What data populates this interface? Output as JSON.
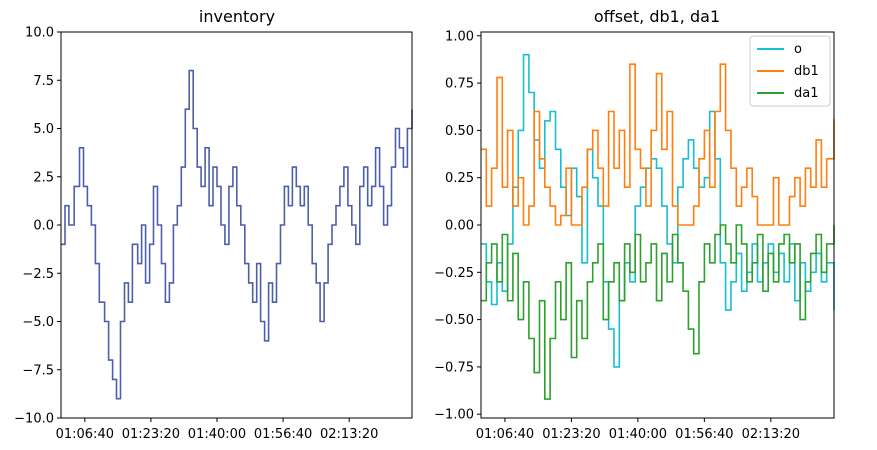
{
  "chart_data": [
    {
      "type": "line",
      "title": "inventory",
      "xlabel": "",
      "ylabel": "",
      "x_tick_labels": [
        "01:06:40",
        "01:23:20",
        "01:40:00",
        "01:56:40",
        "02:13:20"
      ],
      "x_tick_seconds": [
        4000,
        5000,
        6000,
        7000,
        8000
      ],
      "xlim_seconds": [
        3640,
        8950
      ],
      "ylim": [
        -10,
        10
      ],
      "y_ticks": [
        "−10.0",
        "−7.5",
        "−5.0",
        "−2.5",
        "0.0",
        "2.5",
        "5.0",
        "7.5",
        "10.0"
      ],
      "y_tick_values": [
        -10,
        -7.5,
        -5,
        -2.5,
        0,
        2.5,
        5,
        7.5,
        10
      ],
      "grid": false,
      "series": [
        {
          "color": "#4c5fac",
          "x_seconds": [
            3640,
            3700,
            3760,
            3840,
            3920,
            3980,
            4040,
            4100,
            4160,
            4220,
            4300,
            4360,
            4420,
            4480,
            4540,
            4600,
            4660,
            4720,
            4800,
            4860,
            4920,
            4980,
            5040,
            5100,
            5160,
            5220,
            5280,
            5340,
            5400,
            5460,
            5520,
            5580,
            5640,
            5700,
            5760,
            5820,
            5880,
            5940,
            6000,
            6060,
            6120,
            6180,
            6240,
            6300,
            6360,
            6420,
            6480,
            6540,
            6600,
            6660,
            6720,
            6780,
            6840,
            6900,
            6960,
            7020,
            7080,
            7140,
            7200,
            7260,
            7320,
            7380,
            7440,
            7500,
            7560,
            7620,
            7680,
            7740,
            7800,
            7860,
            7920,
            7980,
            8040,
            8100,
            8160,
            8220,
            8280,
            8340,
            8400,
            8460,
            8520,
            8580,
            8640,
            8700,
            8760,
            8820,
            8880,
            8950
          ],
          "values": [
            -1,
            1,
            0,
            2,
            4,
            2,
            1,
            0,
            -2,
            -4,
            -5,
            -7,
            -8,
            -9,
            -5,
            -3,
            -4,
            -1,
            -2,
            0,
            -3,
            -1,
            2,
            0,
            -2,
            -4,
            -3,
            0,
            1,
            3,
            6,
            8,
            5,
            3,
            2,
            4,
            1,
            3,
            2,
            0,
            -1,
            2,
            3,
            1,
            0,
            -2,
            -3,
            -4,
            -2,
            -5,
            -6,
            -3,
            -4,
            -2,
            0,
            2,
            1,
            3,
            2,
            1,
            2,
            0,
            -2,
            -3,
            -5,
            -3,
            -1,
            0,
            1,
            2,
            3,
            1,
            0,
            -1,
            2,
            3,
            1,
            2,
            4,
            2,
            0,
            1,
            3,
            5,
            4,
            3,
            5,
            6
          ]
        }
      ]
    },
    {
      "type": "line",
      "title": "offset, db1, da1",
      "xlabel": "",
      "ylabel": "",
      "x_tick_labels": [
        "01:06:40",
        "01:23:20",
        "01:40:00",
        "01:56:40",
        "02:13:20"
      ],
      "x_tick_seconds": [
        4000,
        5000,
        6000,
        7000,
        8000
      ],
      "xlim_seconds": [
        3640,
        8950
      ],
      "ylim": [
        -1.02,
        1.02
      ],
      "y_ticks": [
        "−1.00",
        "−0.75",
        "−0.50",
        "−0.25",
        "0.00",
        "0.25",
        "0.50",
        "0.75",
        "1.00"
      ],
      "y_tick_values": [
        -1,
        -0.75,
        -0.5,
        -0.25,
        0,
        0.25,
        0.5,
        0.75,
        1
      ],
      "grid": false,
      "legend_position": "top-right",
      "series": [
        {
          "name": "o",
          "color": "#17becf",
          "x_seconds": [
            3640,
            3720,
            3800,
            3880,
            3960,
            4040,
            4120,
            4200,
            4280,
            4360,
            4440,
            4520,
            4600,
            4680,
            4760,
            4840,
            4920,
            5000,
            5080,
            5160,
            5240,
            5320,
            5400,
            5480,
            5560,
            5640,
            5720,
            5800,
            5880,
            5960,
            6040,
            6120,
            6200,
            6280,
            6360,
            6440,
            6520,
            6600,
            6680,
            6760,
            6840,
            6920,
            7000,
            7080,
            7160,
            7240,
            7320,
            7400,
            7480,
            7560,
            7640,
            7720,
            7800,
            7880,
            7960,
            8040,
            8120,
            8200,
            8280,
            8360,
            8440,
            8520,
            8600,
            8680,
            8760,
            8840,
            8950
          ],
          "values": [
            -0.1,
            -0.3,
            -0.42,
            -0.2,
            -0.35,
            -0.1,
            0.2,
            0.5,
            0.9,
            0.7,
            0.45,
            0.3,
            0.55,
            0.6,
            0.4,
            0.2,
            0.05,
            0.3,
            0.15,
            -0.2,
            0.4,
            0.25,
            0.1,
            -0.3,
            -0.55,
            -0.75,
            -0.4,
            -0.2,
            -0.3,
            0.1,
            0.2,
            0.3,
            0.35,
            0.3,
            0.1,
            -0.1,
            -0.2,
            0.2,
            0.35,
            0.45,
            0.3,
            0.2,
            0.25,
            0.6,
            0.35,
            -0.2,
            -0.45,
            -0.3,
            -0.15,
            -0.35,
            -0.25,
            -0.1,
            -0.3,
            -0.2,
            -0.1,
            -0.25,
            -0.15,
            -0.3,
            -0.1,
            -0.4,
            -0.2,
            -0.35,
            -0.25,
            -0.15,
            -0.3,
            -0.2,
            -0.45
          ]
        },
        {
          "name": "db1",
          "color": "#ff7f0e",
          "x_seconds": [
            3640,
            3720,
            3800,
            3880,
            3960,
            4040,
            4120,
            4200,
            4280,
            4360,
            4440,
            4520,
            4600,
            4680,
            4760,
            4840,
            4920,
            5000,
            5080,
            5160,
            5240,
            5320,
            5400,
            5480,
            5560,
            5640,
            5720,
            5800,
            5880,
            5960,
            6040,
            6120,
            6200,
            6280,
            6360,
            6440,
            6520,
            6600,
            6680,
            6760,
            6840,
            6920,
            7000,
            7080,
            7160,
            7240,
            7320,
            7400,
            7480,
            7560,
            7640,
            7720,
            7800,
            7880,
            7960,
            8040,
            8120,
            8200,
            8280,
            8360,
            8440,
            8520,
            8600,
            8680,
            8760,
            8840,
            8950
          ],
          "values": [
            0.4,
            0.1,
            0.3,
            0.78,
            0.2,
            0.5,
            0.1,
            0.25,
            0.0,
            0.1,
            0.6,
            0.35,
            0.2,
            0.1,
            0.0,
            0.05,
            0.3,
            0.0,
            0.0,
            0.2,
            0.4,
            0.5,
            0.3,
            0.1,
            0.6,
            0.3,
            0.5,
            0.2,
            0.85,
            0.4,
            0.3,
            0.1,
            0.5,
            0.8,
            0.4,
            0.6,
            0.1,
            0.0,
            0.0,
            0.0,
            0.1,
            0.35,
            0.5,
            0.2,
            0.6,
            0.85,
            0.5,
            0.3,
            0.1,
            0.2,
            0.3,
            0.15,
            0.0,
            0.0,
            0.0,
            0.25,
            0.0,
            0.0,
            0.15,
            0.25,
            0.1,
            0.3,
            0.2,
            0.45,
            0.2,
            0.35,
            0.56
          ]
        },
        {
          "name": "da1",
          "color": "#2ca02c",
          "x_seconds": [
            3640,
            3720,
            3800,
            3880,
            3960,
            4040,
            4120,
            4200,
            4280,
            4360,
            4440,
            4520,
            4600,
            4680,
            4760,
            4840,
            4920,
            5000,
            5080,
            5160,
            5240,
            5320,
            5400,
            5480,
            5560,
            5640,
            5720,
            5800,
            5880,
            5960,
            6040,
            6120,
            6200,
            6280,
            6360,
            6440,
            6520,
            6600,
            6680,
            6760,
            6840,
            6920,
            7000,
            7080,
            7160,
            7240,
            7320,
            7400,
            7480,
            7560,
            7640,
            7720,
            7800,
            7880,
            7960,
            8040,
            8120,
            8200,
            8280,
            8360,
            8440,
            8520,
            8600,
            8680,
            8760,
            8840,
            8950
          ],
          "values": [
            -0.4,
            -0.2,
            -0.1,
            -0.3,
            -0.05,
            -0.4,
            -0.15,
            -0.5,
            -0.3,
            -0.6,
            -0.78,
            -0.4,
            -0.92,
            -0.6,
            -0.3,
            -0.5,
            -0.2,
            -0.7,
            -0.4,
            -0.6,
            -0.3,
            -0.2,
            -0.1,
            -0.5,
            -0.3,
            -0.2,
            -0.4,
            -0.1,
            -0.25,
            -0.05,
            -0.3,
            -0.2,
            -0.1,
            -0.4,
            -0.15,
            -0.3,
            -0.05,
            -0.2,
            -0.35,
            -0.55,
            -0.68,
            -0.3,
            -0.1,
            -0.2,
            -0.05,
            0.0,
            -0.1,
            -0.2,
            0.0,
            -0.1,
            -0.3,
            -0.2,
            -0.05,
            -0.35,
            -0.15,
            -0.3,
            -0.1,
            -0.05,
            -0.2,
            -0.1,
            -0.5,
            -0.3,
            -0.15,
            -0.05,
            -0.25,
            -0.1,
            0.0
          ]
        }
      ]
    }
  ]
}
